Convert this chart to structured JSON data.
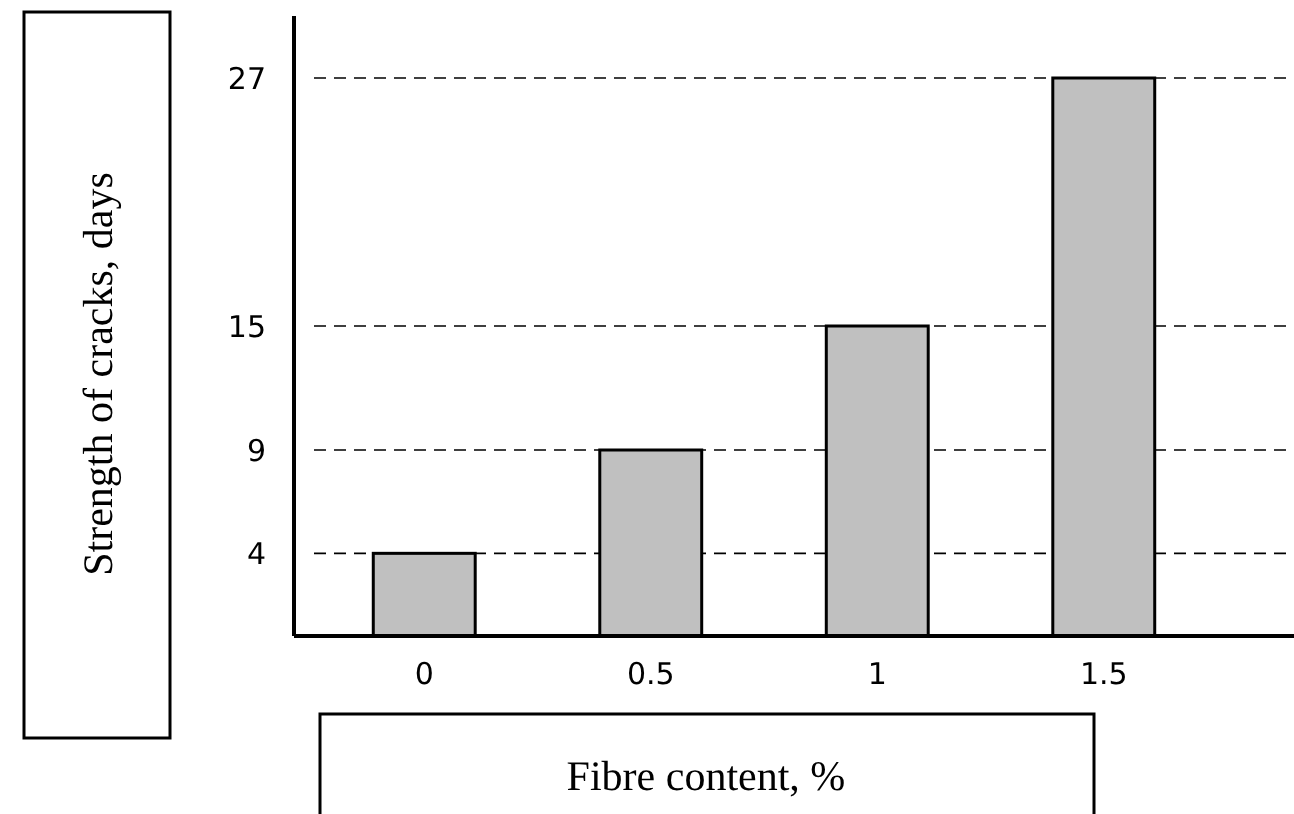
{
  "chart_data": {
    "type": "bar",
    "xlabel": "Fibre content, %",
    "ylabel": "Strength of cracks, days",
    "categories": [
      "0",
      "0.5",
      "1",
      "1.5"
    ],
    "values": [
      4,
      9,
      15,
      27
    ],
    "color": "#c0c0c0",
    "ylim": [
      0,
      30
    ],
    "yticks": [
      4,
      9,
      15,
      27
    ],
    "grid": "y"
  }
}
